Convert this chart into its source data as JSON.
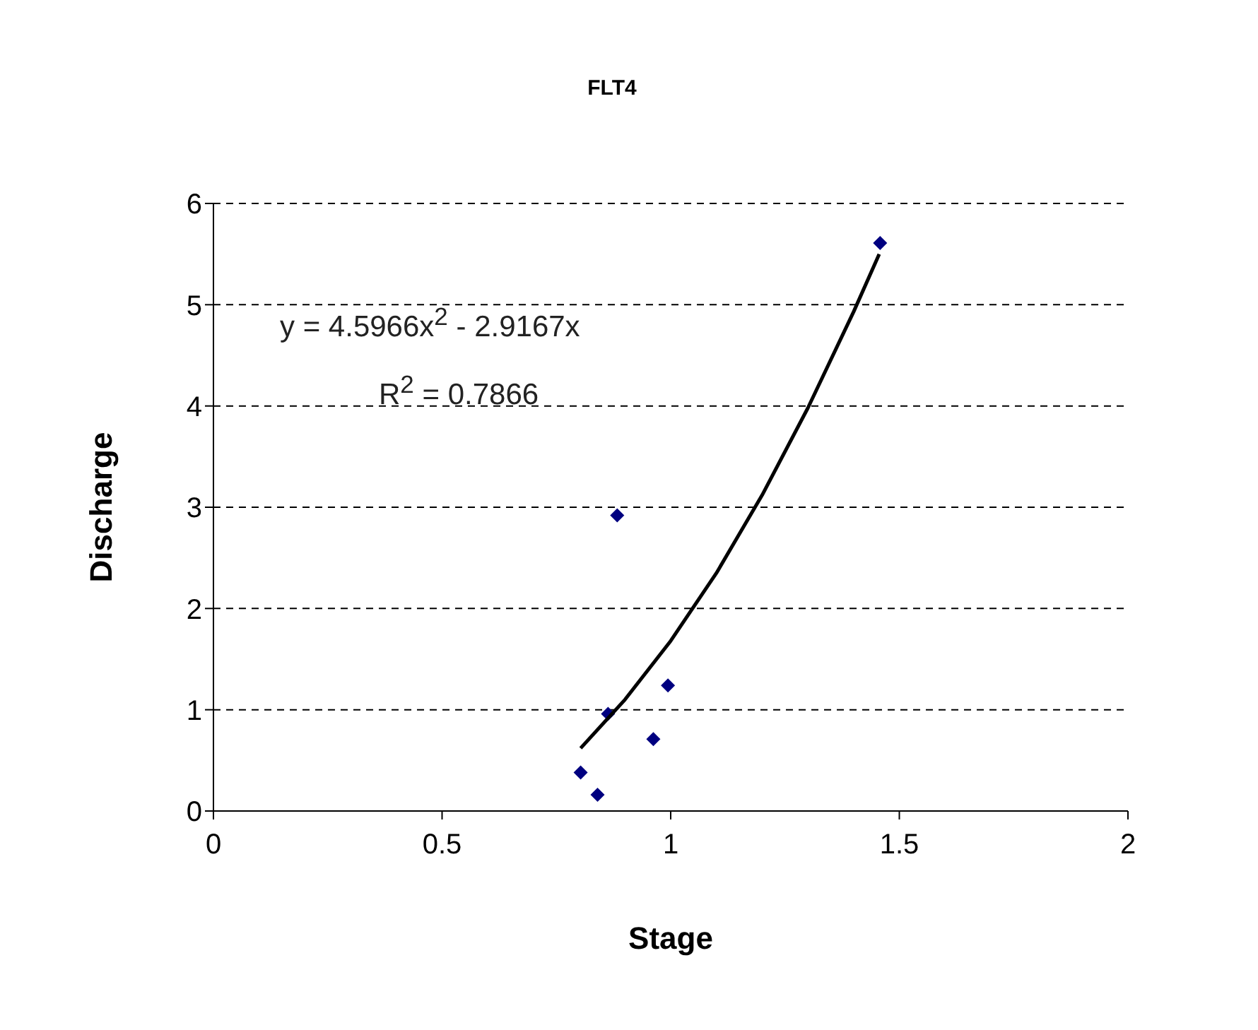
{
  "chart_data": {
    "type": "scatter",
    "title": "FLT4",
    "xlabel": "Stage",
    "ylabel": "Discharge",
    "annotations": [
      "y = 4.5966x$^{2}$ - 2.9167x",
      "R$^{2}$ = 0.7866"
    ],
    "series": [
      {
        "color": "#000080",
        "marker": "diamond",
        "x": [
          1.458,
          0.883,
          0.994,
          0.863,
          0.962,
          0.803,
          0.84
        ],
        "values": [
          5.61,
          2.92,
          1.24,
          0.96,
          0.71,
          0.38,
          0.16
        ]
      },
      {
        "type": "line",
        "color": "#000000",
        "marker": "none",
        "line_style": "solid",
        "x": [
          0.803,
          0.9,
          1.0,
          1.1,
          1.2,
          1.3,
          1.4,
          1.456
        ],
        "values": [
          0.62,
          1.1,
          1.68,
          2.35,
          3.12,
          3.98,
          4.93,
          5.5
        ]
      }
    ],
    "xlim": [
      0,
      2
    ],
    "xticks": [
      0,
      0.5,
      1,
      1.5,
      2
    ],
    "ylim": [
      0,
      6
    ],
    "yticks": [
      0,
      1,
      2,
      3,
      4,
      5,
      6
    ],
    "grid": "y",
    "legend": false
  }
}
